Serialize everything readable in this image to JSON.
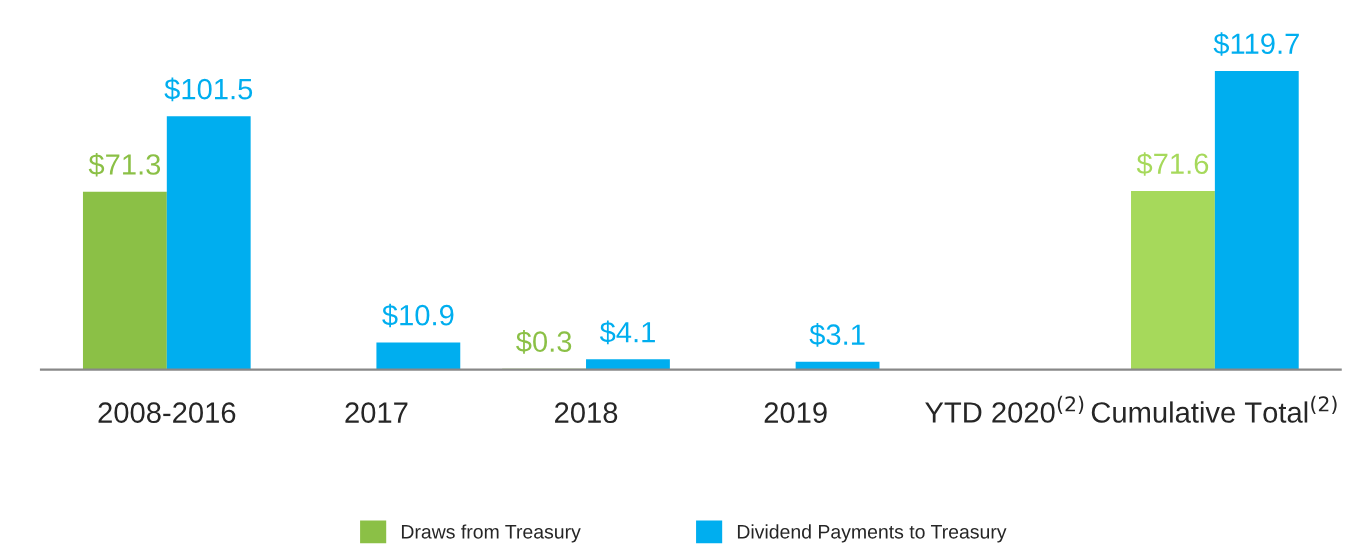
{
  "chart_data": {
    "type": "bar",
    "categories": [
      "2008-2016",
      "2017",
      "2018",
      "2019",
      "YTD 2020$^{(2)}$",
      "Cumulative Total$^{(2)}$"
    ],
    "series": [
      {
        "name": "Draws from Treasury",
        "color": "#8bc046",
        "colors": [
          "#8bc046",
          "#8bc046",
          "#8bc046",
          "#8bc046",
          "#8bc046",
          "#a6d95b"
        ],
        "values": [
          71.3,
          null,
          0.3,
          null,
          null,
          71.6
        ],
        "value_labels": [
          "$71.3",
          null,
          "$0.3",
          null,
          null,
          "$71.6"
        ]
      },
      {
        "name": "Dividend Payments to Treasury",
        "color": "#00aeef",
        "values": [
          101.5,
          10.9,
          4.1,
          3.1,
          null,
          119.7
        ],
        "value_labels": [
          "$101.5",
          "$10.9",
          "$4.1",
          "$3.1",
          null,
          "$119.7"
        ]
      }
    ],
    "legend": "bottom",
    "grid": false,
    "tick_labels": "x"
  }
}
